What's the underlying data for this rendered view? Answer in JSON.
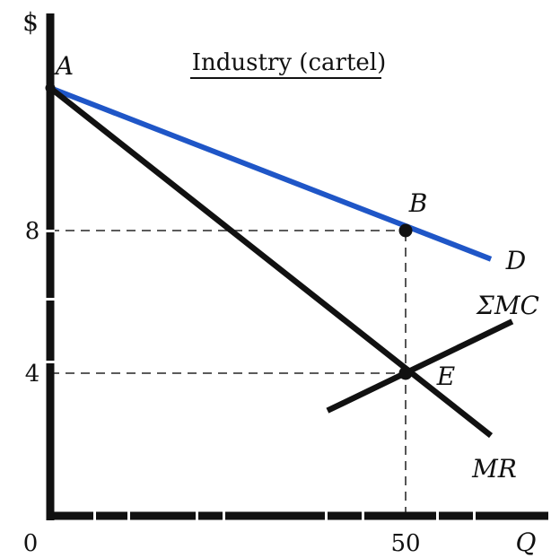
{
  "chart_data": {
    "type": "line",
    "title": "Industry (cartel)",
    "xlabel": "Q",
    "ylabel": "$",
    "x_ticks": [
      {
        "value": 0,
        "label": "0"
      },
      {
        "value": 50,
        "label": "50"
      }
    ],
    "y_ticks": [
      {
        "value": 4,
        "label": "4"
      },
      {
        "value": 8,
        "label": "8"
      }
    ],
    "xlim": [
      0,
      66
    ],
    "ylim": [
      0,
      14.5
    ],
    "grid": false,
    "legend": "none",
    "series": [
      {
        "name": "D",
        "color": "#1f56c7",
        "points": [
          {
            "x": 0,
            "y": 12
          },
          {
            "x": 62,
            "y": 7.2
          }
        ]
      },
      {
        "name": "MR",
        "color": "#111111",
        "points": [
          {
            "x": 0,
            "y": 12
          },
          {
            "x": 62,
            "y": 2.25
          }
        ]
      },
      {
        "name": "ΣMC",
        "color": "#111111",
        "points": [
          {
            "x": 39,
            "y": 2.95
          },
          {
            "x": 65,
            "y": 5.45
          }
        ]
      }
    ],
    "points": [
      {
        "label": "A",
        "x": 0,
        "y": 12
      },
      {
        "label": "B",
        "x": 50,
        "y": 8
      },
      {
        "label": "E",
        "x": 50,
        "y": 4
      }
    ],
    "reference_lines": [
      {
        "from": [
          0,
          8
        ],
        "to": [
          50,
          8
        ]
      },
      {
        "from": [
          0,
          4
        ],
        "to": [
          50,
          4
        ]
      },
      {
        "from": [
          50,
          0
        ],
        "to": [
          50,
          8
        ]
      }
    ]
  }
}
